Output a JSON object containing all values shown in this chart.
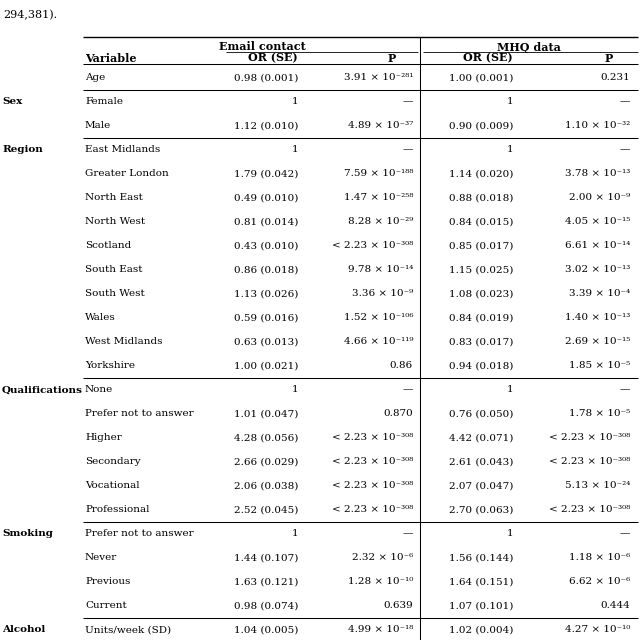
{
  "title_text": "294,381).",
  "header1": "Email contact",
  "header2": "MHQ data",
  "rows": [
    {
      "group": "",
      "variable": "Age",
      "ec_or": "0.98 (0.001)",
      "ec_p": "3.91 × 10⁻²⁸¹",
      "mhq_or": "1.00 (0.001)",
      "mhq_p": "0.231"
    },
    {
      "group": "Sex",
      "variable": "Female",
      "ec_or": "1",
      "ec_p": "—",
      "mhq_or": "1",
      "mhq_p": "—"
    },
    {
      "group": "",
      "variable": "Male",
      "ec_or": "1.12 (0.010)",
      "ec_p": "4.89 × 10⁻³⁷",
      "mhq_or": "0.90 (0.009)",
      "mhq_p": "1.10 × 10⁻³²"
    },
    {
      "group": "Region",
      "variable": "East Midlands",
      "ec_or": "1",
      "ec_p": "—",
      "mhq_or": "1",
      "mhq_p": "—"
    },
    {
      "group": "",
      "variable": "Greater London",
      "ec_or": "1.79 (0.042)",
      "ec_p": "7.59 × 10⁻¹⁸⁸",
      "mhq_or": "1.14 (0.020)",
      "mhq_p": "3.78 × 10⁻¹³"
    },
    {
      "group": "",
      "variable": "North East",
      "ec_or": "0.49 (0.010)",
      "ec_p": "1.47 × 10⁻²⁵⁸",
      "mhq_or": "0.88 (0.018)",
      "mhq_p": "2.00 × 10⁻⁹"
    },
    {
      "group": "",
      "variable": "North West",
      "ec_or": "0.81 (0.014)",
      "ec_p": "8.28 × 10⁻²⁹",
      "mhq_or": "0.84 (0.015)",
      "mhq_p": "4.05 × 10⁻¹⁵"
    },
    {
      "group": "",
      "variable": "Scotland",
      "ec_or": "0.43 (0.010)",
      "ec_p": "< 2.23 × 10⁻³⁰⁸",
      "mhq_or": "0.85 (0.017)",
      "mhq_p": "6.61 × 10⁻¹⁴"
    },
    {
      "group": "",
      "variable": "South East",
      "ec_or": "0.86 (0.018)",
      "ec_p": "9.78 × 10⁻¹⁴",
      "mhq_or": "1.15 (0.025)",
      "mhq_p": "3.02 × 10⁻¹³"
    },
    {
      "group": "",
      "variable": "South West",
      "ec_or": "1.13 (0.026)",
      "ec_p": "3.36 × 10⁻⁹",
      "mhq_or": "1.08 (0.023)",
      "mhq_p": "3.39 × 10⁻⁴"
    },
    {
      "group": "",
      "variable": "Wales",
      "ec_or": "0.59 (0.016)",
      "ec_p": "1.52 × 10⁻¹⁰⁶",
      "mhq_or": "0.84 (0.019)",
      "mhq_p": "1.40 × 10⁻¹³"
    },
    {
      "group": "",
      "variable": "West Midlands",
      "ec_or": "0.63 (0.013)",
      "ec_p": "4.66 × 10⁻¹¹⁹",
      "mhq_or": "0.83 (0.017)",
      "mhq_p": "2.69 × 10⁻¹⁵"
    },
    {
      "group": "",
      "variable": "Yorkshire",
      "ec_or": "1.00 (0.021)",
      "ec_p": "0.86",
      "mhq_or": "0.94 (0.018)",
      "mhq_p": "1.85 × 10⁻⁵"
    },
    {
      "group": "Qualifications",
      "variable": "None",
      "ec_or": "1",
      "ec_p": "—",
      "mhq_or": "1",
      "mhq_p": "—"
    },
    {
      "group": "",
      "variable": "Prefer not to answer",
      "ec_or": "1.01 (0.047)",
      "ec_p": "0.870",
      "mhq_or": "0.76 (0.050)",
      "mhq_p": "1.78 × 10⁻⁵"
    },
    {
      "group": "",
      "variable": "Higher",
      "ec_or": "4.28 (0.056)",
      "ec_p": "< 2.23 × 10⁻³⁰⁸",
      "mhq_or": "4.42 (0.071)",
      "mhq_p": "< 2.23 × 10⁻³⁰⁸"
    },
    {
      "group": "",
      "variable": "Secondary",
      "ec_or": "2.66 (0.029)",
      "ec_p": "< 2.23 × 10⁻³⁰⁸",
      "mhq_or": "2.61 (0.043)",
      "mhq_p": "< 2.23 × 10⁻³⁰⁸"
    },
    {
      "group": "",
      "variable": "Vocational",
      "ec_or": "2.06 (0.038)",
      "ec_p": "< 2.23 × 10⁻³⁰⁸",
      "mhq_or": "2.07 (0.047)",
      "mhq_p": "5.13 × 10⁻²⁴"
    },
    {
      "group": "",
      "variable": "Professional",
      "ec_or": "2.52 (0.045)",
      "ec_p": "< 2.23 × 10⁻³⁰⁸",
      "mhq_or": "2.70 (0.063)",
      "mhq_p": "< 2.23 × 10⁻³⁰⁸"
    },
    {
      "group": "Smoking",
      "variable": "Prefer not to answer",
      "ec_or": "1",
      "ec_p": "—",
      "mhq_or": "1",
      "mhq_p": "—"
    },
    {
      "group": "",
      "variable": "Never",
      "ec_or": "1.44 (0.107)",
      "ec_p": "2.32 × 10⁻⁶",
      "mhq_or": "1.56 (0.144)",
      "mhq_p": "1.18 × 10⁻⁶"
    },
    {
      "group": "",
      "variable": "Previous",
      "ec_or": "1.63 (0.121)",
      "ec_p": "1.28 × 10⁻¹⁰",
      "mhq_or": "1.64 (0.151)",
      "mhq_p": "6.62 × 10⁻⁶"
    },
    {
      "group": "",
      "variable": "Current",
      "ec_or": "0.98 (0.074)",
      "ec_p": "0.639",
      "mhq_or": "1.07 (0.101)",
      "mhq_p": "0.444"
    },
    {
      "group": "Alcohol",
      "variable": "Units/week (SD)",
      "ec_or": "1.04 (0.005)",
      "ec_p": "4.99 × 10⁻¹⁸",
      "mhq_or": "1.02 (0.004)",
      "mhq_p": "4.27 × 10⁻¹⁰"
    }
  ],
  "group_end_rows": [
    0,
    2,
    12,
    18,
    22,
    23
  ],
  "plain_p_values": [
    "0.86",
    "0.870",
    "0.639",
    "0.231",
    "0.444"
  ],
  "background_color": "#ffffff"
}
